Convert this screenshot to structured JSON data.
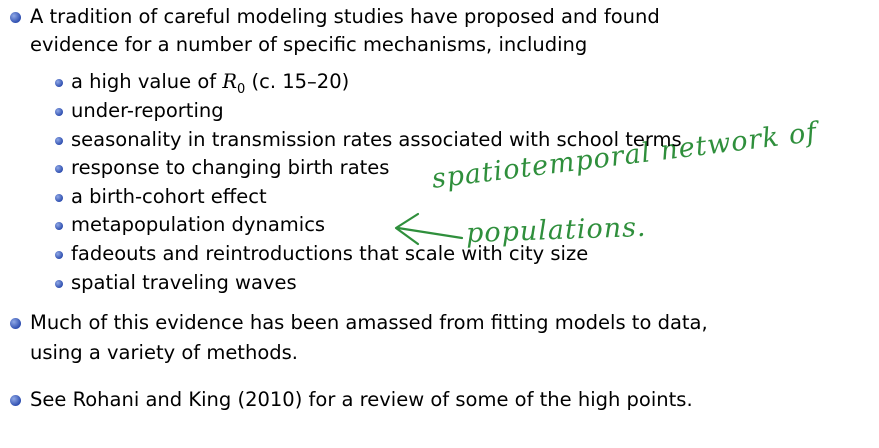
{
  "bullets": [
    {
      "lines": [
        "A tradition of careful modeling studies have proposed and found",
        "evidence for a number of specific mechanisms, including"
      ],
      "first_subitem": {
        "text": "a high value of ",
        "math": "R",
        "subscript": "0",
        "text_after": " (c. 15–20)"
      },
      "subitems": [
        "under-reporting",
        "seasonality in transmission rates associated with school terms",
        "response to changing birth rates",
        "a birth-cohort effect",
        "metapopulation dynamics",
        "fadeouts and reintroductions that scale with city size",
        "spatial traveling waves"
      ]
    },
    {
      "lines": [
        "Much of this evidence has been amassed from fitting models to data,",
        "using a variety of methods."
      ]
    },
    {
      "lines": [
        "See Rohani and King (2010) for a review of some of the high points."
      ]
    }
  ],
  "annotation": {
    "lines": [
      "spatiotemporal network of",
      "populations."
    ]
  }
}
